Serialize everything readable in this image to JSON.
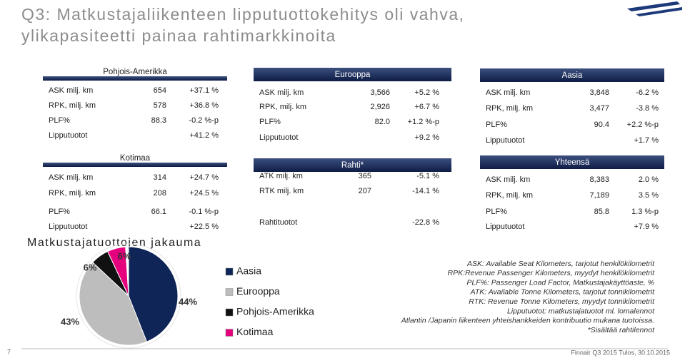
{
  "header": {
    "title_lines": [
      "Q3: Matkustajaliikenteen lipputuottokehitys oli vahva,",
      "ylikapasiteetti painaa rahtimarkkinoita"
    ]
  },
  "panels": [
    {
      "name": "Pohjois-Amerikka",
      "rows": [
        [
          "ASK milj. km",
          "654",
          "+37.1 %"
        ],
        [
          "RPK, milj. km",
          "578",
          "+36.8 %"
        ],
        [
          "PLF%",
          "88.3",
          "-0.2 %-p"
        ],
        [
          "Lipputuotot",
          null,
          "+41.2 %"
        ]
      ]
    },
    {
      "name": "Eurooppa",
      "rows": [
        [
          "ASK milj. km",
          "3,566",
          "+5.2 %"
        ],
        [
          "RPK, milj. km",
          "2,926",
          "+6.7 %"
        ],
        [
          "PLF%",
          "82.0",
          "+1.2 %-p"
        ],
        [
          "Lipputuotot",
          null,
          "+9.2 %"
        ]
      ]
    },
    {
      "name": "Aasia",
      "rows": [
        [
          "ASK milj. km",
          "3,848",
          "-6.2 %"
        ],
        [
          "RPK, milj. km",
          "3,477",
          "-3.8 %"
        ],
        [
          "PLF%",
          "90.4",
          "+2.2 %-p"
        ],
        [
          "Lipputuotot",
          null,
          "+1.7 %"
        ]
      ]
    },
    {
      "name": "Kotimaa",
      "rows": [
        [
          "ASK milj. km",
          "314",
          "+24.7 %"
        ],
        [
          "RPK, milj. km",
          "208",
          "+24.5 %"
        ],
        [
          "PLF%",
          "66.1",
          "-0.1 %-p"
        ],
        [
          "Lipputuotot",
          null,
          "+22.5 %"
        ]
      ]
    },
    {
      "name": "Rahti*",
      "rows": [
        [
          "ATK milj. km",
          "365",
          "-5.1 %"
        ],
        [
          "RTK milj. km",
          "207",
          "-14.1 %"
        ],
        [
          "Rahtituotot",
          null,
          "-22.8 %"
        ]
      ]
    },
    {
      "name": "Yhteensä",
      "rows": [
        [
          "ASK milj. km",
          "8,383",
          "2.0 %"
        ],
        [
          "RPK, milj. km",
          "7,189",
          "3.5 %"
        ],
        [
          "PLF%",
          "85.8",
          "1.3 %-p"
        ],
        [
          "Lipputuotot",
          null,
          "+7.9 %"
        ]
      ]
    }
  ],
  "pie": {
    "type": "pie",
    "title": "Matkustajatuottojen jakauma",
    "series": [
      {
        "name": "Aasia",
        "color": "#0f2557",
        "value": 44,
        "value_label": "44%"
      },
      {
        "name": "Eurooppa",
        "color": "#bdbdbd",
        "value": 43,
        "value_label": "43%"
      },
      {
        "name": "Pohjois-Amerikka",
        "color": "#111111",
        "value": 6,
        "value_label": "6%"
      },
      {
        "name": "Kotimaa",
        "color": "#e5007d",
        "value": 6,
        "value_label": "6%"
      }
    ]
  },
  "notes": [
    "ASK: Available Seat Kilometers, tarjotut henkilökilometrit",
    "RPK:Revenue Passenger Kilometers, myydyt henkilökilometrit",
    "PLF%: Passenger Load Factor, Matkustajakäyttöaste, %",
    "ATK: Available Tonne Kilometers, tarjotut tonnikilometrit",
    "RTK: Revenue Tonne Kilometers, myydyt tonnikilometrit",
    "Lipputuotot: matkustajatuotot ml. lomalennot",
    "Atlantin /Japanin liikenteen yhteishankkeiden kontribuutio mukana tuotoissa.",
    "*Sisältää rahtilennot"
  ],
  "footer": {
    "page": "7",
    "source": "Finnair Q3 2015 Tulos, 30.10.2015"
  }
}
